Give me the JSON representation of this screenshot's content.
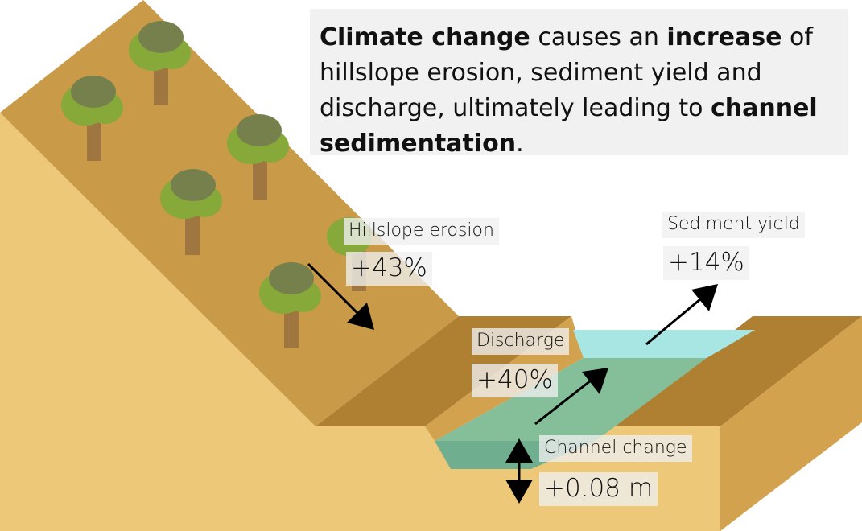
{
  "headline": {
    "p1_bold": "Climate change",
    "p2": " causes an ",
    "p3_bold": "increase",
    "p4": " of hillslope erosion, sediment yield and discharge, ultimately leading to ",
    "p5_bold": "channel sedimentation",
    "p6": "."
  },
  "labels": {
    "hillslope": {
      "name": "Hillslope erosion",
      "value": "+43%"
    },
    "sediment": {
      "name": "Sediment yield",
      "value": "+14%"
    },
    "discharge": {
      "name": "Discharge",
      "value": "+40%"
    },
    "channel": {
      "name": "Channel change",
      "value": "+0.08 m"
    }
  },
  "colors": {
    "slope_top": "#c99a48",
    "slope_side": "#edc878",
    "bank_dark": "#b08032",
    "water_light": "#a8e6e4",
    "water_green": "#84bf9a",
    "tree_trunk": "#a07640",
    "tree_light": "#86a93a",
    "tree_dark": "#76804c"
  }
}
